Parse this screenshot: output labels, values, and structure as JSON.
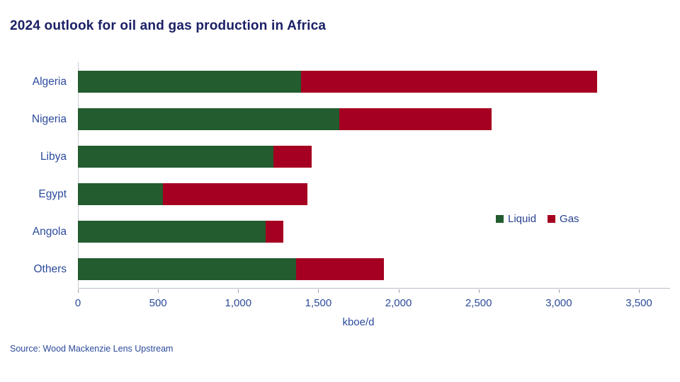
{
  "page": {
    "title": "2024 outlook for oil and gas production in Africa",
    "source": "Source: Wood Mackenzie Lens Upstream"
  },
  "chart_data": {
    "type": "bar",
    "orientation": "horizontal",
    "stacked": true,
    "title": "2024 outlook for oil and gas production in Africa",
    "xlabel": "kboe/d",
    "ylabel": "",
    "categories": [
      "Algeria",
      "Nigeria",
      "Libya",
      "Egypt",
      "Angola",
      "Others"
    ],
    "series": [
      {
        "name": "Liquid",
        "color": "#235c2f",
        "values": [
          1390,
          1630,
          1220,
          530,
          1170,
          1360
        ]
      },
      {
        "name": "Gas",
        "color": "#a50021",
        "values": [
          1850,
          950,
          240,
          900,
          110,
          550
        ]
      }
    ],
    "totals": [
      3240,
      2580,
      1460,
      1430,
      1280,
      1910
    ],
    "xlim": [
      0,
      3500
    ],
    "x_ticks": [
      0,
      500,
      1000,
      1500,
      2000,
      2500,
      3000,
      3500
    ],
    "x_tick_labels": [
      "0",
      "500",
      "1,000",
      "1,500",
      "2,000",
      "2,500",
      "3,000",
      "3,500"
    ],
    "grid": false,
    "legend_position": "middle-right"
  },
  "colors": {
    "title_text": "#1b2065",
    "axis_text": "#2b4a9b",
    "axis_line": "#b9bec7",
    "y_axis_line": "#c9cdd4",
    "background": "#ffffff"
  }
}
